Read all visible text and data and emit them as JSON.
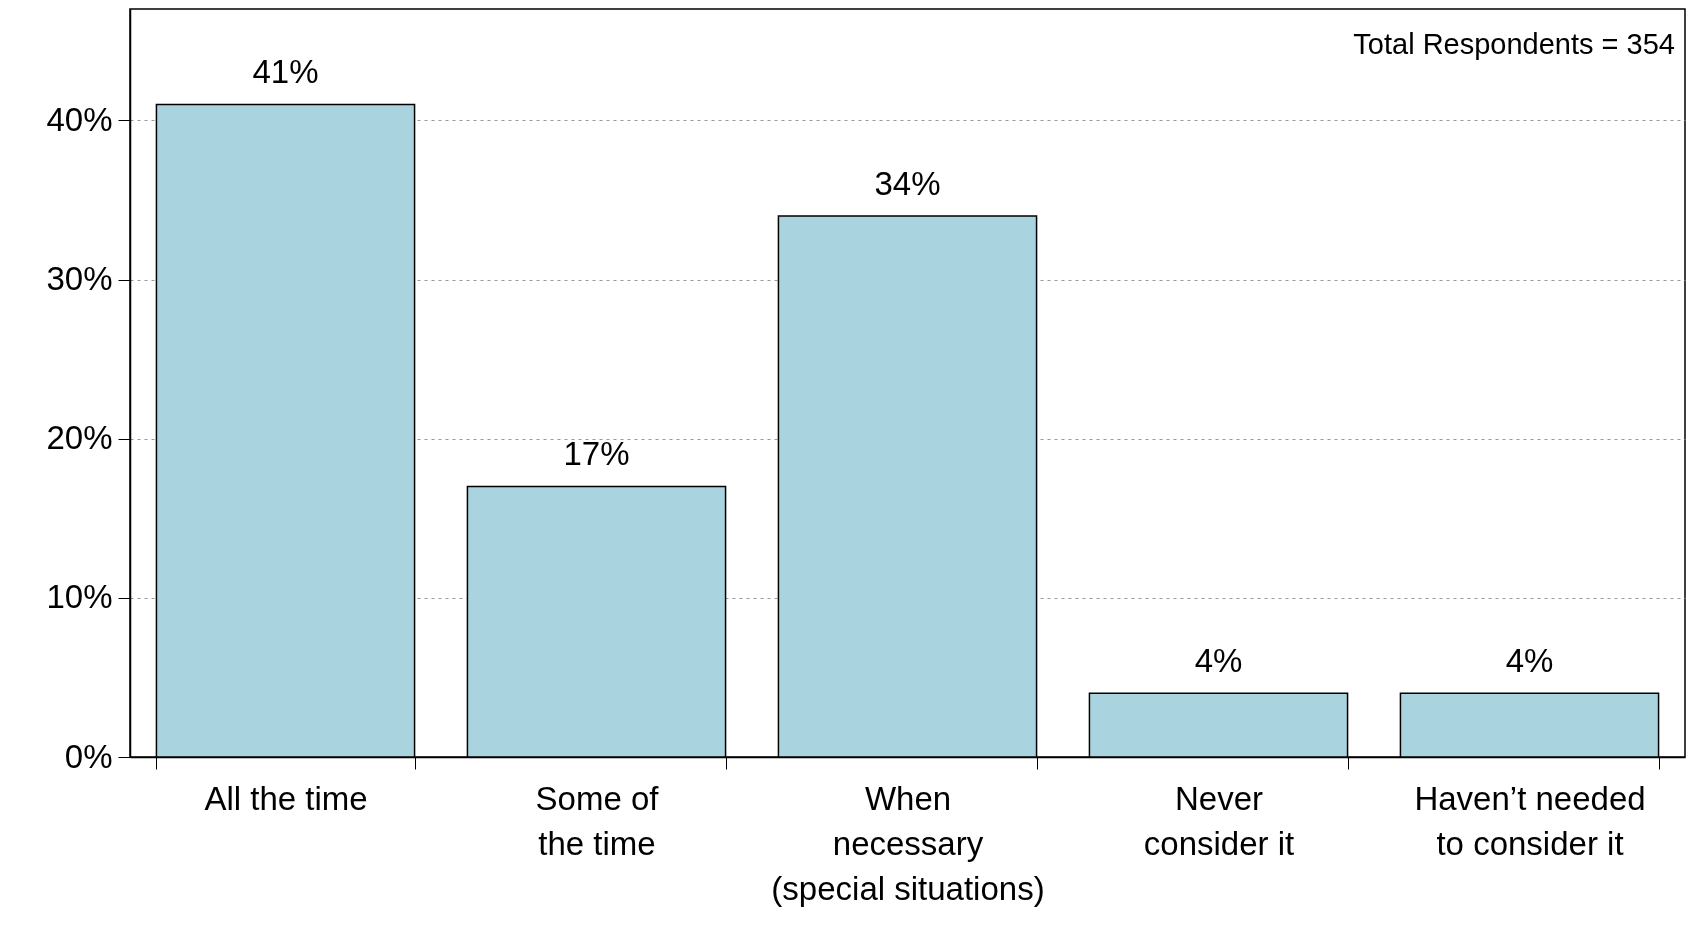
{
  "chart_data": {
    "type": "bar",
    "categories": [
      "All the time",
      "Some of\nthe time",
      "When\nnecessary\n(special situations)",
      "Never\nconsider it",
      "Haven’t needed\nto consider it"
    ],
    "values": [
      41,
      17,
      34,
      4,
      4
    ],
    "color": "#a8d3df",
    "ylim": [
      0,
      47
    ],
    "yticks": [
      {
        "value": 0,
        "label": "0%"
      },
      {
        "value": 10,
        "label": "10%"
      },
      {
        "value": 20,
        "label": "20%"
      },
      {
        "value": 30,
        "label": "30%"
      },
      {
        "value": 40,
        "label": "40%"
      }
    ],
    "grid": "y",
    "data_labels": true,
    "value_labels": [
      "41%",
      "17%",
      "34%",
      "4%",
      "4%"
    ],
    "annotations": [
      "Total Respondents = 354"
    ]
  }
}
